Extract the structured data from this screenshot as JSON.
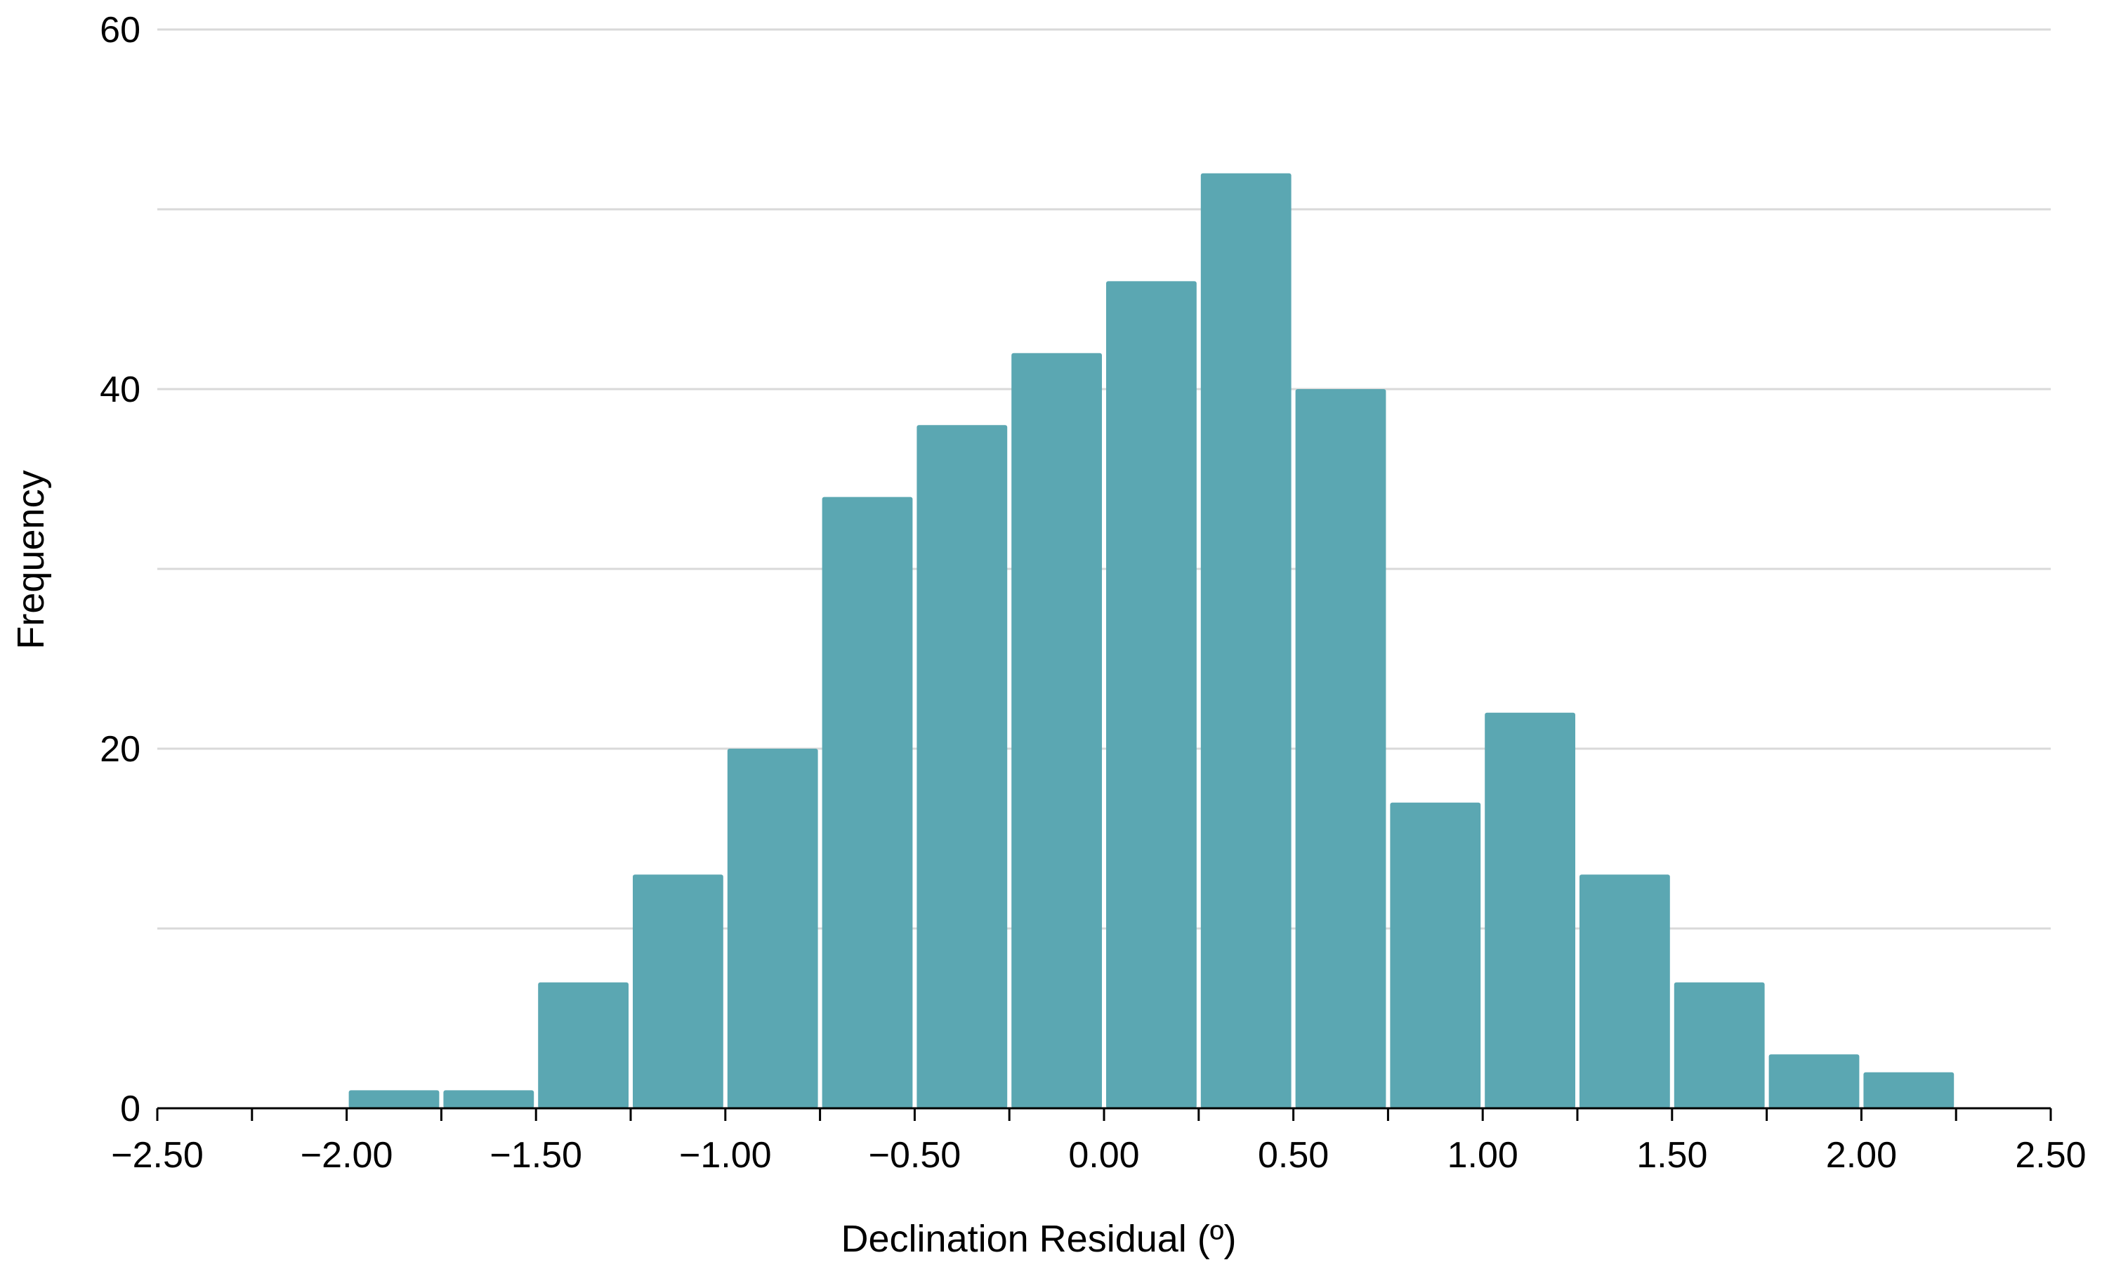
{
  "chart_data": {
    "type": "bar",
    "subtype": "histogram",
    "title": "",
    "xlabel": "Declination Residual (º)",
    "ylabel": "Frequency",
    "xlim": [
      -2.5,
      2.5
    ],
    "ylim": [
      0,
      60
    ],
    "x_ticks": [
      -2.5,
      -2.0,
      -1.5,
      -1.0,
      -0.5,
      0.0,
      0.5,
      1.0,
      1.5,
      2.0,
      2.5
    ],
    "x_tick_labels": [
      "−2.50",
      "−2.00",
      "−1.50",
      "−1.00",
      "−0.50",
      "0.00",
      "0.50",
      "1.00",
      "1.50",
      "2.00",
      "2.50"
    ],
    "x_minor_ticks": [
      -2.25,
      -1.75,
      -1.25,
      -0.75,
      -0.25,
      0.25,
      0.75,
      1.25,
      1.75,
      2.25
    ],
    "y_ticks": [
      0,
      20,
      40,
      60
    ],
    "y_tick_labels": [
      "0",
      "20",
      "40",
      "60"
    ],
    "y_gridlines": [
      10,
      20,
      30,
      40,
      50,
      60
    ],
    "grid": "horizontal",
    "bin_width": 0.25,
    "bins": [
      {
        "start": -2.25,
        "end": -2.0,
        "count": 0
      },
      {
        "start": -2.0,
        "end": -1.75,
        "count": 1
      },
      {
        "start": -1.75,
        "end": -1.5,
        "count": 1
      },
      {
        "start": -1.5,
        "end": -1.25,
        "count": 7
      },
      {
        "start": -1.25,
        "end": -1.0,
        "count": 13
      },
      {
        "start": -1.0,
        "end": -0.75,
        "count": 20
      },
      {
        "start": -0.75,
        "end": -0.5,
        "count": 34
      },
      {
        "start": -0.5,
        "end": -0.25,
        "count": 38
      },
      {
        "start": -0.25,
        "end": 0.0,
        "count": 42
      },
      {
        "start": 0.0,
        "end": 0.25,
        "count": 46
      },
      {
        "start": 0.25,
        "end": 0.5,
        "count": 52
      },
      {
        "start": 0.5,
        "end": 0.75,
        "count": 40
      },
      {
        "start": 0.75,
        "end": 1.0,
        "count": 17
      },
      {
        "start": 1.0,
        "end": 1.25,
        "count": 22
      },
      {
        "start": 1.25,
        "end": 1.5,
        "count": 13
      },
      {
        "start": 1.5,
        "end": 1.75,
        "count": 7
      },
      {
        "start": 1.75,
        "end": 2.0,
        "count": 3
      },
      {
        "start": 2.0,
        "end": 2.25,
        "count": 2
      }
    ],
    "colors": {
      "bar": "#5ba7b2",
      "grid": "#d9d9d9",
      "axis": "#000000"
    }
  }
}
